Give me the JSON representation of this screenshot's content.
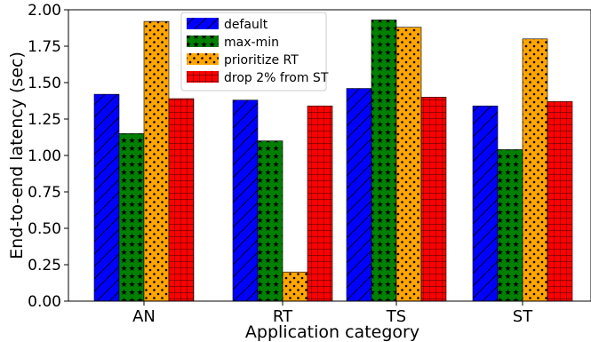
{
  "chart_data": {
    "type": "bar",
    "title": "",
    "xlabel": "Application category",
    "ylabel": "End-to-end latency (sec)",
    "categories": [
      "AN",
      "RT",
      "TS",
      "ST"
    ],
    "ylim": [
      0,
      2.0
    ],
    "yticks": [
      "0.00",
      "0.25",
      "0.50",
      "0.75",
      "1.00",
      "1.25",
      "1.50",
      "1.75",
      "2.00"
    ],
    "grid": false,
    "legend_position": "top-center",
    "series": [
      {
        "name": "default",
        "values": [
          1.42,
          1.38,
          1.46,
          1.34
        ],
        "color": "#0000ff",
        "hatch": "diagonal"
      },
      {
        "name": "max-min",
        "values": [
          1.15,
          1.1,
          1.93,
          1.04
        ],
        "color": "#008000",
        "hatch": "stars"
      },
      {
        "name": "prioritize RT",
        "values": [
          1.92,
          0.2,
          1.88,
          1.8
        ],
        "color": "#ffa500",
        "hatch": "dots"
      },
      {
        "name": "drop 2% from ST",
        "values": [
          1.39,
          1.34,
          1.4,
          1.37
        ],
        "color": "#ff0000",
        "hatch": "grid"
      }
    ]
  }
}
